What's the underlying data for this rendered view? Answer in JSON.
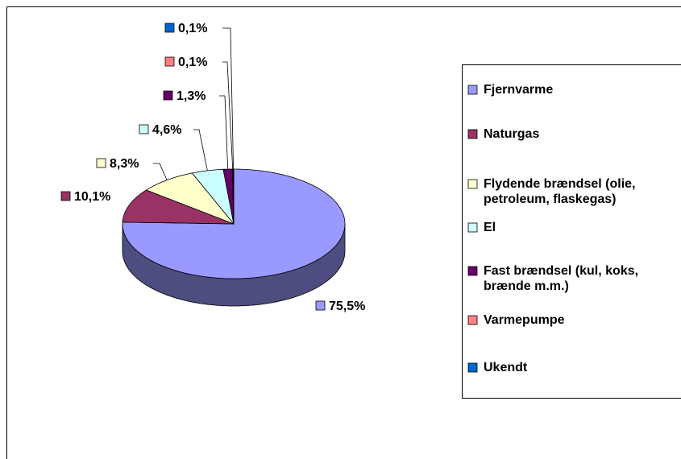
{
  "chart_data": {
    "type": "pie",
    "categories": [
      "Fjernvarme",
      "Naturgas",
      "Flydende brændsel (olie, petroleum, flaskegas)",
      "El",
      "Fast brændsel (kul, koks, brænde m.m.)",
      "Varmepumpe",
      "Ukendt"
    ],
    "values": [
      75.5,
      10.1,
      8.3,
      4.6,
      1.3,
      0.1,
      0.1
    ],
    "value_labels": [
      "75,5%",
      "10,1%",
      "8,3%",
      "4,6%",
      "1,3%",
      "0,1%",
      "0,1%"
    ],
    "colors": [
      "#9999ff",
      "#993366",
      "#ffffcc",
      "#ccffff",
      "#660066",
      "#ff8080",
      "#0066cc"
    ],
    "legend": "right"
  }
}
